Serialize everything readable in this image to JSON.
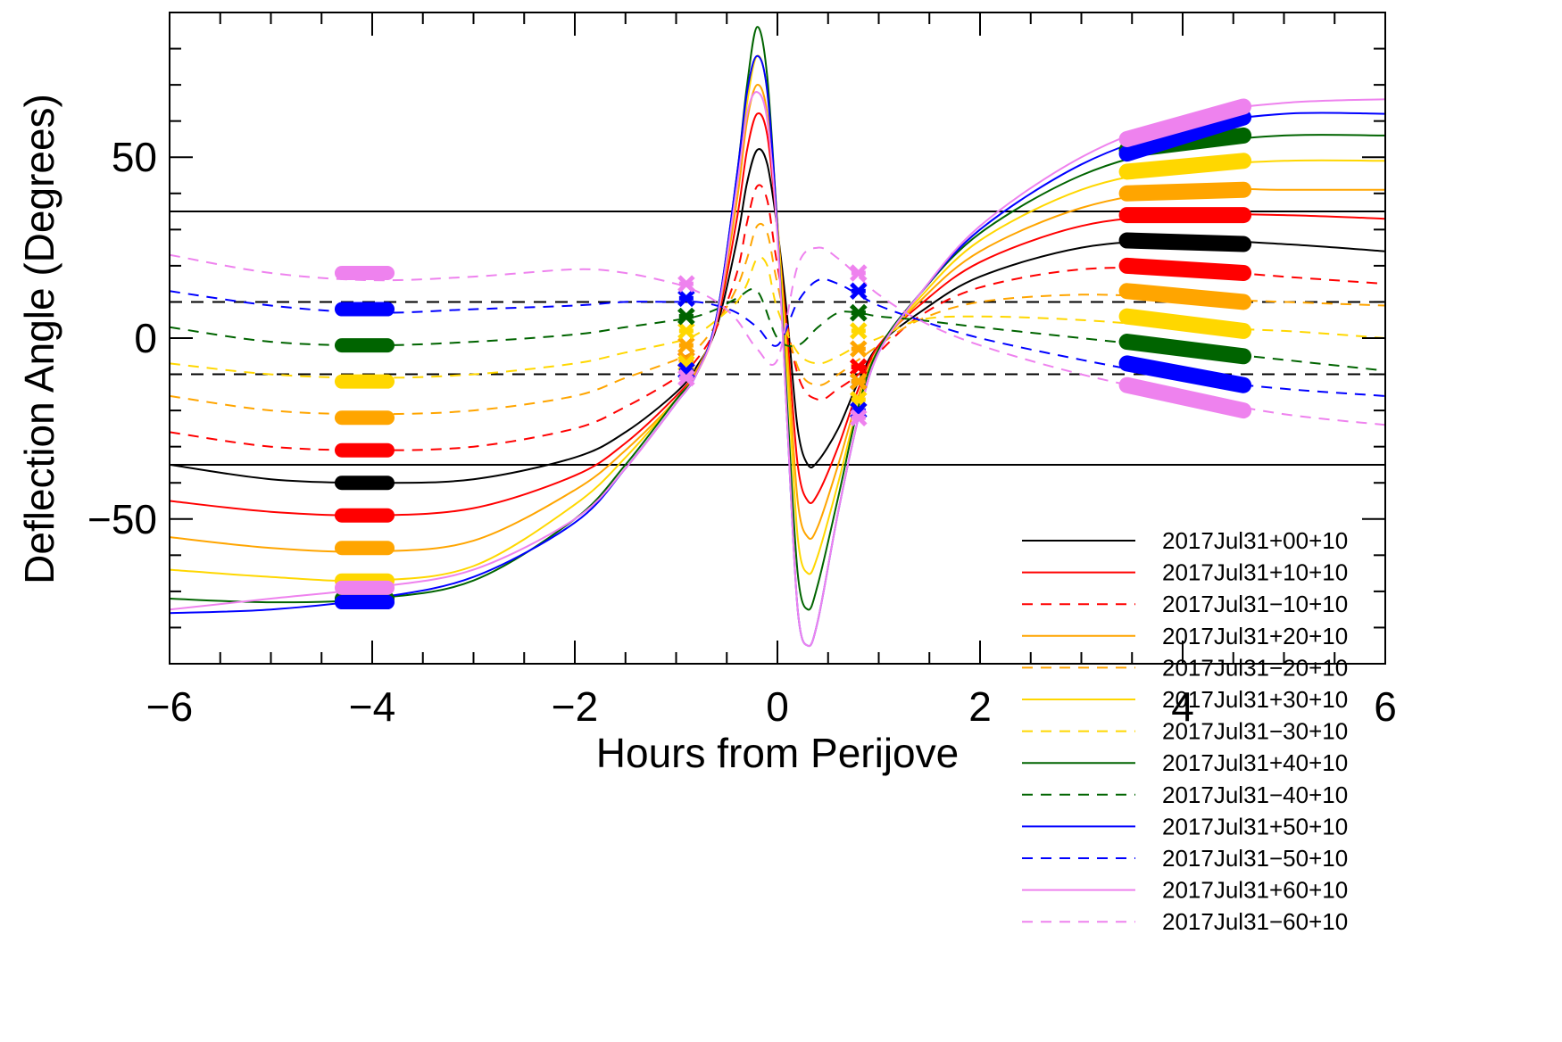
{
  "chart_data": {
    "type": "line",
    "title": "",
    "xlabel": "Hours from Perijove",
    "ylabel": "Deflection Angle (Degrees)",
    "xlim": [
      -6,
      6
    ],
    "ylim": [
      -90,
      90
    ],
    "x_ticks": [
      -6,
      -4,
      -2,
      0,
      2,
      4,
      6
    ],
    "y_ticks": [
      -50,
      0,
      50
    ],
    "x_tick_labels": [
      "−6",
      "−4",
      "−2",
      "0",
      "2",
      "4",
      "6"
    ],
    "y_tick_labels": [
      "−50",
      "0",
      "50"
    ],
    "grid": false,
    "legend_position": "bottom-right",
    "reference_lines": [
      {
        "y": 35,
        "style": "solid"
      },
      {
        "y": -35,
        "style": "solid"
      },
      {
        "y": 10,
        "style": "dashed"
      },
      {
        "y": -10,
        "style": "dashed"
      }
    ],
    "series": [
      {
        "name": "2017Jul31+00+10",
        "color": "#000000",
        "dash": false,
        "x": [
          -6,
          -5,
          -4,
          -3,
          -2,
          -1.5,
          -1,
          -0.8,
          -0.6,
          -0.4,
          -0.3,
          -0.2,
          -0.1,
          0,
          0.1,
          0.2,
          0.3,
          0.4,
          0.6,
          0.8,
          1,
          1.4,
          2,
          3,
          4,
          5,
          6
        ],
        "y": [
          -35,
          -39,
          -40,
          -39,
          -33,
          -26,
          -15,
          -8,
          3,
          27,
          43,
          52,
          48,
          30,
          5,
          -25,
          -35,
          -34,
          -25,
          -12,
          -2,
          7,
          17,
          25,
          27,
          26,
          24
        ]
      },
      {
        "name": "2017Jul31+10+10",
        "color": "#ff0000",
        "dash": false,
        "x": [
          -6,
          -5,
          -4,
          -3,
          -2,
          -1.5,
          -1,
          -0.8,
          -0.6,
          -0.4,
          -0.3,
          -0.2,
          -0.1,
          0,
          0.1,
          0.2,
          0.3,
          0.4,
          0.6,
          0.8,
          1,
          1.4,
          2,
          3,
          4,
          5,
          6
        ],
        "y": [
          -45,
          -48,
          -49,
          -47,
          -38,
          -29,
          -16,
          -9,
          4,
          33,
          52,
          62,
          56,
          30,
          0,
          -35,
          -45,
          -43,
          -30,
          -14,
          -2,
          9,
          21,
          31,
          34,
          34,
          33
        ]
      },
      {
        "name": "2017Jul31−10+10",
        "color": "#ff0000",
        "dash": true,
        "x": [
          -6,
          -5,
          -4,
          -3,
          -2,
          -1.5,
          -1,
          -0.8,
          -0.6,
          -0.4,
          -0.3,
          -0.2,
          -0.1,
          0,
          0.2,
          0.4,
          0.6,
          0.8,
          1,
          1.4,
          2,
          3,
          4,
          5,
          6
        ],
        "y": [
          -26,
          -30,
          -31,
          -30,
          -25,
          -19,
          -11,
          -6,
          3,
          18,
          32,
          42,
          38,
          20,
          -10,
          -17,
          -14,
          -10,
          -4,
          6,
          14,
          19,
          19,
          17,
          15
        ]
      },
      {
        "name": "2017Jul31+20+10",
        "color": "#ffa500",
        "dash": false,
        "x": [
          -6,
          -5,
          -4,
          -3,
          -2,
          -1.5,
          -1,
          -0.8,
          -0.6,
          -0.4,
          -0.3,
          -0.2,
          -0.1,
          0,
          0.1,
          0.2,
          0.3,
          0.4,
          0.6,
          0.8,
          1,
          1.4,
          2,
          3,
          4,
          5,
          6
        ],
        "y": [
          -55,
          -58,
          -59,
          -56,
          -42,
          -31,
          -17,
          -9,
          5,
          38,
          60,
          70,
          62,
          32,
          -5,
          -45,
          -55,
          -52,
          -35,
          -16,
          -3,
          10,
          24,
          36,
          41,
          41,
          41
        ]
      },
      {
        "name": "2017Jul31−20+10",
        "color": "#ffa500",
        "dash": true,
        "x": [
          -6,
          -5,
          -4,
          -3,
          -2,
          -1.5,
          -1,
          -0.8,
          -0.6,
          -0.4,
          -0.3,
          -0.2,
          -0.1,
          0,
          0.2,
          0.4,
          0.6,
          0.8,
          1,
          1.4,
          2,
          3,
          4,
          5,
          6
        ],
        "y": [
          -16,
          -20,
          -21,
          -20,
          -16,
          -11,
          -6,
          -3,
          4,
          14,
          22,
          31,
          29,
          15,
          -8,
          -13,
          -10,
          -6,
          -2,
          5,
          10,
          12,
          11,
          10,
          9
        ]
      },
      {
        "name": "2017Jul31+30+10",
        "color": "#ffd700",
        "dash": false,
        "x": [
          -6,
          -5,
          -4,
          -3,
          -2,
          -1.5,
          -1,
          -0.8,
          -0.6,
          -0.4,
          -0.3,
          -0.2,
          -0.1,
          0,
          0.1,
          0.2,
          0.3,
          0.4,
          0.6,
          0.8,
          1,
          1.4,
          2,
          3,
          4,
          5,
          6
        ],
        "y": [
          -64,
          -66,
          -67,
          -63,
          -46,
          -33,
          -17,
          -10,
          5,
          42,
          65,
          78,
          68,
          32,
          -10,
          -55,
          -65,
          -60,
          -40,
          -18,
          -3,
          11,
          27,
          41,
          47,
          49,
          49
        ]
      },
      {
        "name": "2017Jul31−30+10",
        "color": "#ffd700",
        "dash": true,
        "x": [
          -6,
          -5,
          -4,
          -3,
          -2,
          -1.5,
          -1,
          -0.8,
          -0.6,
          -0.4,
          -0.3,
          -0.2,
          -0.1,
          0,
          0.2,
          0.4,
          0.6,
          0.8,
          1,
          1.4,
          2,
          3,
          4,
          5,
          6
        ],
        "y": [
          -7,
          -10,
          -11,
          -10,
          -7,
          -4,
          -1,
          1,
          5,
          10,
          15,
          22,
          20,
          8,
          -4,
          -7,
          -5,
          -2,
          0,
          5,
          6,
          5,
          3,
          2,
          0
        ]
      },
      {
        "name": "2017Jul31+40+10",
        "color": "#006400",
        "dash": false,
        "x": [
          -6,
          -5,
          -4,
          -3,
          -2,
          -1.5,
          -1,
          -0.8,
          -0.6,
          -0.4,
          -0.3,
          -0.2,
          -0.1,
          0,
          0.1,
          0.2,
          0.3,
          0.4,
          0.6,
          0.8,
          1,
          1.4,
          2,
          3,
          4,
          5,
          6
        ],
        "y": [
          -72,
          -73,
          -72,
          -67,
          -50,
          -35,
          -17,
          -10,
          6,
          45,
          70,
          86,
          72,
          30,
          -20,
          -65,
          -75,
          -68,
          -44,
          -19,
          -3,
          12,
          29,
          45,
          53,
          56,
          56
        ]
      },
      {
        "name": "2017Jul31−40+10",
        "color": "#006400",
        "dash": true,
        "x": [
          -6,
          -5,
          -4,
          -3,
          -2,
          -1.5,
          -1,
          -0.8,
          -0.6,
          -0.4,
          -0.2,
          0,
          0.2,
          0.4,
          0.6,
          0.8,
          1,
          1.4,
          2,
          3,
          4,
          5,
          6
        ],
        "y": [
          3,
          -1,
          -2,
          -1,
          1,
          3,
          5,
          6,
          8,
          11,
          13,
          0,
          -2,
          3,
          7,
          7,
          6,
          5,
          3,
          0,
          -3,
          -6,
          -9
        ]
      },
      {
        "name": "2017Jul31+50+10",
        "color": "#0000ff",
        "dash": false,
        "x": [
          -6,
          -5,
          -4,
          -3,
          -2,
          -1.5,
          -1,
          -0.8,
          -0.6,
          -0.4,
          -0.3,
          -0.2,
          -0.1,
          0,
          0.1,
          0.2,
          0.3,
          0.4,
          0.6,
          0.8,
          1,
          1.4,
          2,
          3,
          4,
          5,
          6
        ],
        "y": [
          -76,
          -75,
          -72,
          -66,
          -51,
          -36,
          -18,
          -10,
          6,
          45,
          68,
          78,
          68,
          30,
          -25,
          -75,
          -85,
          -78,
          -48,
          -22,
          -4,
          12,
          30,
          48,
          58,
          62,
          62
        ]
      },
      {
        "name": "2017Jul31−50+10",
        "color": "#0000ff",
        "dash": true,
        "x": [
          -6,
          -5,
          -4,
          -3,
          -2,
          -1.5,
          -1,
          -0.8,
          -0.6,
          -0.4,
          -0.2,
          0,
          0.2,
          0.4,
          0.6,
          0.8,
          1,
          1.4,
          2,
          3,
          4,
          5,
          6
        ],
        "y": [
          13,
          9,
          7,
          8,
          9,
          10,
          10,
          10,
          9,
          7,
          3,
          -2,
          10,
          16,
          15,
          12,
          9,
          5,
          0,
          -6,
          -11,
          -14,
          -16
        ]
      },
      {
        "name": "2017Jul31+60+10",
        "color": "#ee82ee",
        "dash": false,
        "x": [
          -6,
          -5,
          -4,
          -3,
          -2,
          -1.5,
          -1,
          -0.8,
          -0.6,
          -0.4,
          -0.3,
          -0.2,
          -0.1,
          0,
          0.1,
          0.2,
          0.3,
          0.4,
          0.6,
          0.8,
          1,
          1.4,
          2,
          3,
          4,
          5,
          6
        ],
        "y": [
          -75,
          -72,
          -69,
          -64,
          -50,
          -36,
          -18,
          -10,
          5,
          42,
          62,
          68,
          60,
          28,
          -25,
          -75,
          -85,
          -78,
          -48,
          -22,
          -4,
          12,
          31,
          50,
          61,
          65,
          66
        ]
      },
      {
        "name": "2017Jul31−60+10",
        "color": "#ee82ee",
        "dash": true,
        "x": [
          -6,
          -5,
          -4,
          -3,
          -2,
          -1.5,
          -1,
          -0.8,
          -0.6,
          -0.4,
          -0.2,
          0,
          0.2,
          0.4,
          0.6,
          0.8,
          1,
          1.4,
          2,
          3,
          4,
          5,
          6
        ],
        "y": [
          23,
          18,
          16,
          17,
          19,
          18,
          15,
          13,
          10,
          5,
          -3,
          -6,
          20,
          25,
          22,
          17,
          12,
          5,
          -2,
          -10,
          -16,
          -21,
          -24
        ]
      }
    ],
    "markers": {
      "-4.1": [
        -40,
        -49,
        -31,
        -58,
        -22,
        -67,
        -12,
        -72,
        -2,
        -73,
        8,
        -69,
        18
      ],
      "-0.9": [
        -6,
        -6,
        -6,
        -2,
        -6,
        2,
        -7,
        6,
        6,
        -9,
        11,
        -11,
        15
      ],
      "0.8": [
        -12,
        -8,
        -8,
        -3,
        -12,
        2,
        -17,
        7,
        7,
        -20,
        13,
        -22,
        18
      ],
      "3.4_to_4.6": [
        [
          27,
          26
        ],
        [
          34,
          34
        ],
        [
          20,
          18
        ],
        [
          40,
          41
        ],
        [
          13,
          10
        ],
        [
          46,
          49
        ],
        [
          6,
          2
        ],
        [
          52,
          56
        ],
        [
          -1,
          -5
        ],
        [
          51,
          61
        ],
        [
          -7,
          -13
        ],
        [
          55,
          64
        ],
        [
          -13,
          -20
        ]
      ]
    }
  }
}
